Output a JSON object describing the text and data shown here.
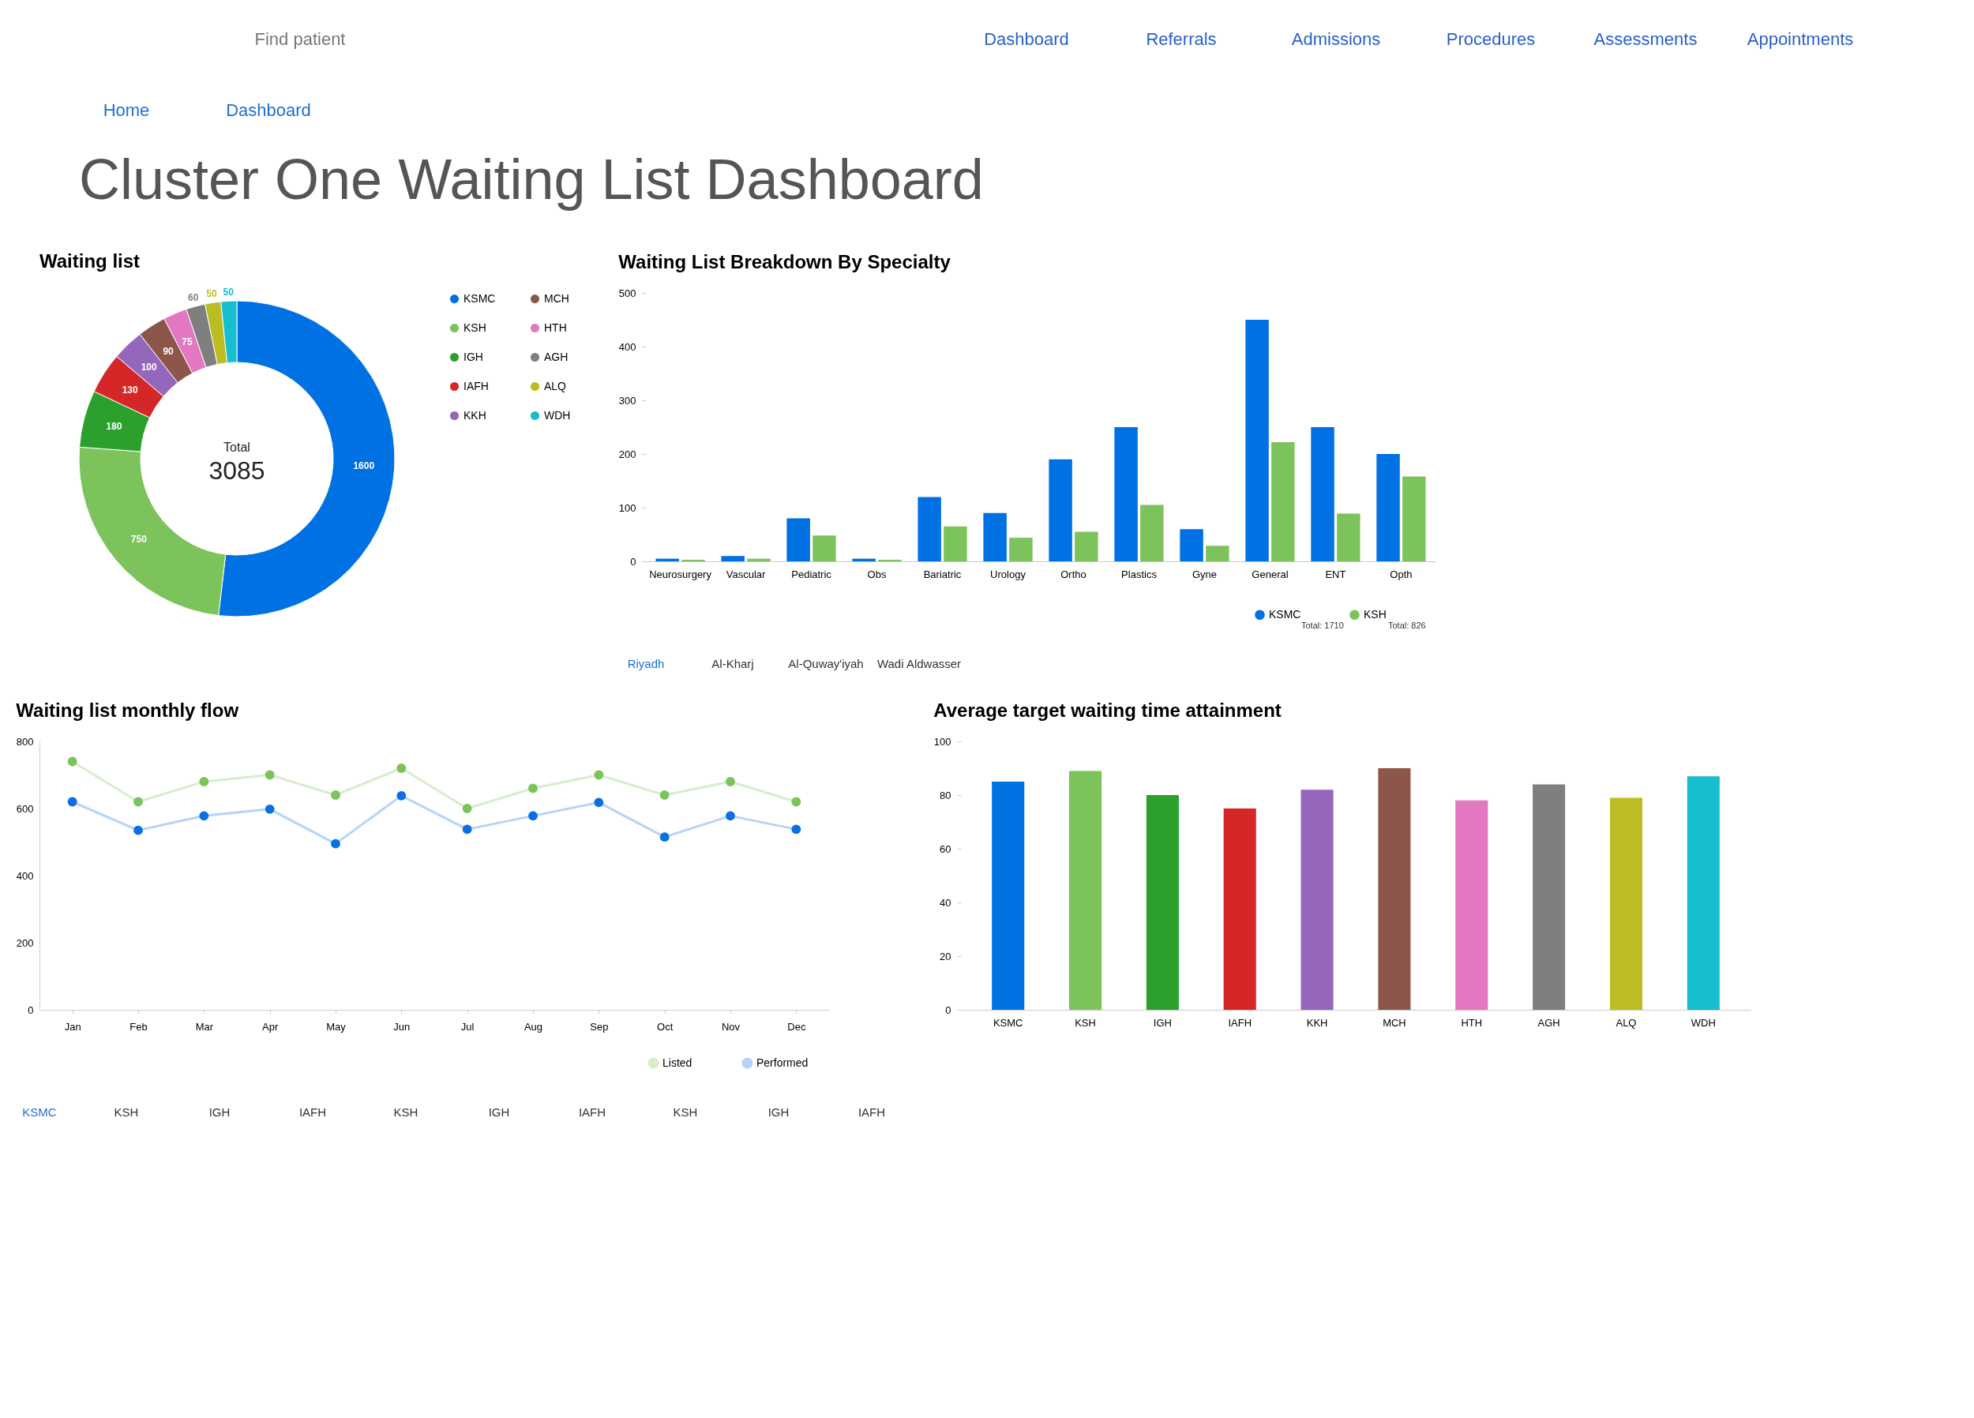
{
  "chart_data": [
    {
      "type": "other",
      "title": "Cluster One Waiting List Dashboard",
      "annotations": [
        "Find patient",
        "Dashboard",
        "Referrals",
        "Admissions",
        "Procedures",
        "Assessments",
        "Appointments",
        "Home",
        "Dashboard"
      ]
    },
    {
      "type": "donut",
      "title": "Waiting list",
      "categories": [
        "KSMC",
        "KSH",
        "IGH",
        "IAFH",
        "KKH",
        "MCH",
        "HTH",
        "AGH",
        "ALQ",
        "WDH"
      ],
      "values": [
        1600,
        750,
        180,
        130,
        100,
        90,
        75,
        60,
        50,
        50
      ],
      "colors": [
        "#0071e3",
        "#7dc35b",
        "#2ca02c",
        "#d62728",
        "#9467bd",
        "#8c564b",
        "#e377c2",
        "#7f7f7f",
        "#bcbd22",
        "#17becf"
      ],
      "data_labels": true,
      "legend": "right",
      "annotations": [
        "Total",
        "3085"
      ]
    },
    {
      "type": "bar",
      "title": "Waiting List Breakdown By Specialty",
      "categories": [
        "Neurosurgery",
        "Vascular",
        "Pediatric",
        "Obs",
        "Bariatric",
        "Urology",
        "Ortho",
        "Plastics",
        "Gyne",
        "General",
        "ENT",
        "Opth"
      ],
      "series": [
        {
          "name": "KSMC",
          "color": "#0071e3",
          "values": [
            5,
            10,
            80,
            5,
            120,
            90,
            190,
            250,
            60,
            450,
            250,
            200
          ]
        },
        {
          "name": "KSH",
          "color": "#7dc35b",
          "values": [
            3,
            5,
            48,
            3,
            65,
            44,
            55,
            105,
            29,
            222,
            89,
            158
          ]
        }
      ],
      "ylim": [
        0,
        500
      ],
      "yticks": [
        0,
        100,
        200,
        300,
        400,
        500
      ],
      "legend": "bottom right",
      "annotations": [
        "Total: 1710",
        "Total: 826",
        "Riyadh",
        "Al-Kharj",
        "Al-Quway'iyah",
        "Wadi Aldwasser"
      ]
    },
    {
      "type": "line",
      "title": "Waiting list monthly flow",
      "categories": [
        "Jan",
        "Feb",
        "Mar",
        "Apr",
        "May",
        "Jun",
        "Jul",
        "Aug",
        "Sep",
        "Oct",
        "Nov",
        "Dec"
      ],
      "series": [
        {
          "name": "Listed",
          "color": "#7dc35b",
          "values": [
            740,
            620,
            680,
            700,
            640,
            720,
            600,
            660,
            700,
            640,
            680,
            620
          ]
        },
        {
          "name": "Performed",
          "color": "#0a6fe0",
          "values": [
            620,
            535,
            578,
            598,
            495,
            638,
            538,
            578,
            618,
            515,
            578,
            538
          ]
        }
      ],
      "ylim": [
        0,
        800
      ],
      "yticks": [
        0,
        200,
        400,
        600,
        800
      ],
      "marker": "circle",
      "legend": "bottom right",
      "annotations": [
        "KSMC",
        "KSH",
        "IGH",
        "IAFH",
        "KSH",
        "IGH",
        "IAFH",
        "KSH",
        "IGH",
        "IAFH"
      ]
    },
    {
      "type": "bar",
      "title": "Average target waiting time attainment",
      "categories": [
        "KSMC",
        "KSH",
        "IGH",
        "IAFH",
        "KKH",
        "MCH",
        "HTH",
        "AGH",
        "ALQ",
        "WDH"
      ],
      "values": [
        85,
        89,
        80,
        75,
        82,
        90,
        78,
        84,
        79,
        87
      ],
      "colors": [
        "#0071e3",
        "#7dc35b",
        "#2ca02c",
        "#d62728",
        "#9467bd",
        "#8c564b",
        "#e377c2",
        "#7f7f7f",
        "#bcbd22",
        "#17becf"
      ],
      "ylim": [
        0,
        100
      ],
      "yticks": [
        0,
        20,
        40,
        60,
        80,
        100
      ]
    }
  ]
}
